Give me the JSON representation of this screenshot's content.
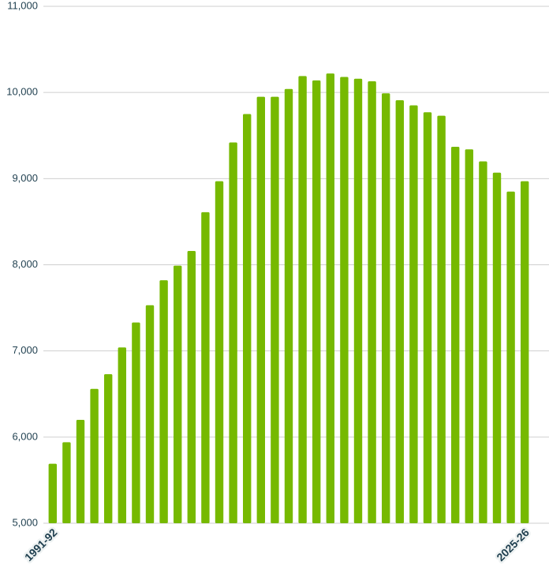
{
  "chart_data": {
    "type": "bar",
    "categories": [
      "1991-92",
      null,
      null,
      null,
      null,
      null,
      null,
      null,
      null,
      null,
      null,
      null,
      null,
      null,
      null,
      null,
      null,
      null,
      null,
      null,
      null,
      null,
      null,
      null,
      null,
      null,
      null,
      null,
      null,
      null,
      null,
      null,
      null,
      null,
      "2025-26"
    ],
    "values": [
      5690,
      5940,
      6200,
      6560,
      6730,
      7040,
      7330,
      7530,
      7820,
      7990,
      8160,
      8610,
      8970,
      9420,
      9750,
      9950,
      9950,
      10040,
      10190,
      10140,
      10220,
      10180,
      10160,
      10130,
      9990,
      9910,
      9850,
      9770,
      9730,
      9370,
      9340,
      9200,
      9070,
      8850,
      8970
    ],
    "color": "#76b900",
    "ylim": [
      5000,
      11000
    ],
    "yticks": [
      {
        "value": 5000,
        "label": "5,000"
      },
      {
        "value": 6000,
        "label": "6,000"
      },
      {
        "value": 7000,
        "label": "7,000"
      },
      {
        "value": 8000,
        "label": "8,000"
      },
      {
        "value": 9000,
        "label": "9,000"
      },
      {
        "value": 10000,
        "label": "10,000"
      },
      {
        "value": 11000,
        "label": "11,000"
      }
    ],
    "grid": true
  }
}
